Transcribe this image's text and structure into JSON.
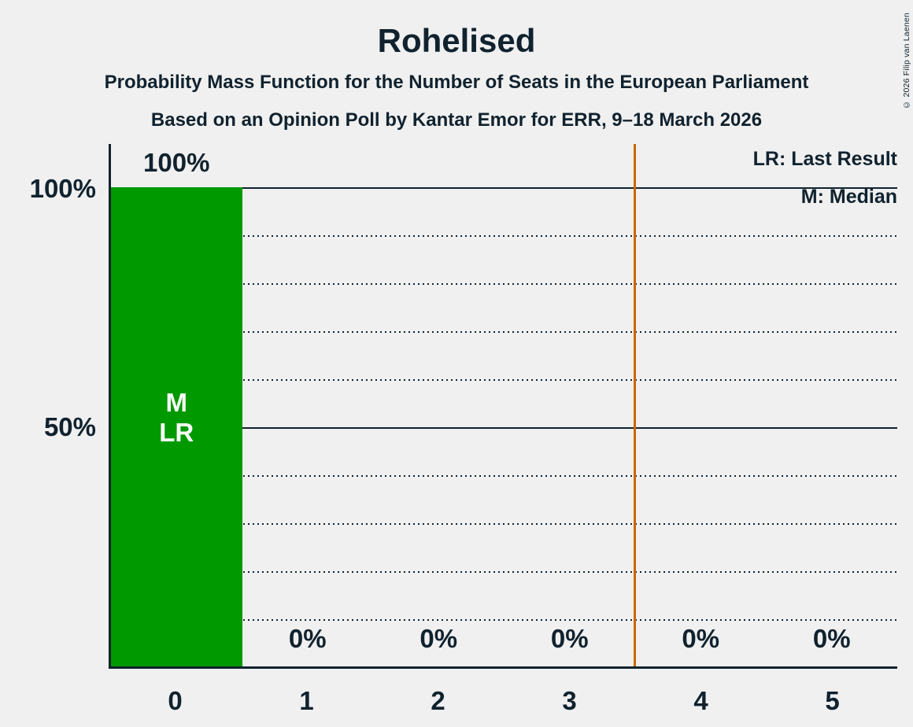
{
  "chart_data": {
    "type": "bar",
    "title": "Rohelised",
    "subtitle": "Probability Mass Function for the Number of Seats in the European Parliament",
    "source_line": "Based on an Opinion Poll by Kantar Emor for ERR, 9–18 March 2026",
    "copyright": "© 2026 Filip van Laenen",
    "categories": [
      "0",
      "1",
      "2",
      "3",
      "4",
      "5"
    ],
    "values": [
      100,
      0,
      0,
      0,
      0,
      0
    ],
    "value_labels": [
      "100%",
      "0%",
      "0%",
      "0%",
      "0%",
      "0%"
    ],
    "xlabel": "",
    "ylabel": "",
    "ylim": [
      0,
      100
    ],
    "ytick_labels": [
      "100%",
      "50%"
    ],
    "grid": "dotted horizontal lines every 10%, solid at 50% and 100%",
    "legend_position": "top-right",
    "legend": [
      {
        "abbr": "LR",
        "label": "LR: Last Result"
      },
      {
        "abbr": "M",
        "label": "M: Median"
      }
    ],
    "bar_annotations": {
      "median": "M",
      "last_result": "LR"
    },
    "median_seats": 0,
    "last_result_seats": 0,
    "threshold_line_x": 3.5,
    "colors": {
      "bar": "#009900",
      "threshold_line": "#cc6600",
      "text": "#10222e",
      "background": "#f0f0f0",
      "bar_annotation_text": "#ffffff"
    }
  }
}
